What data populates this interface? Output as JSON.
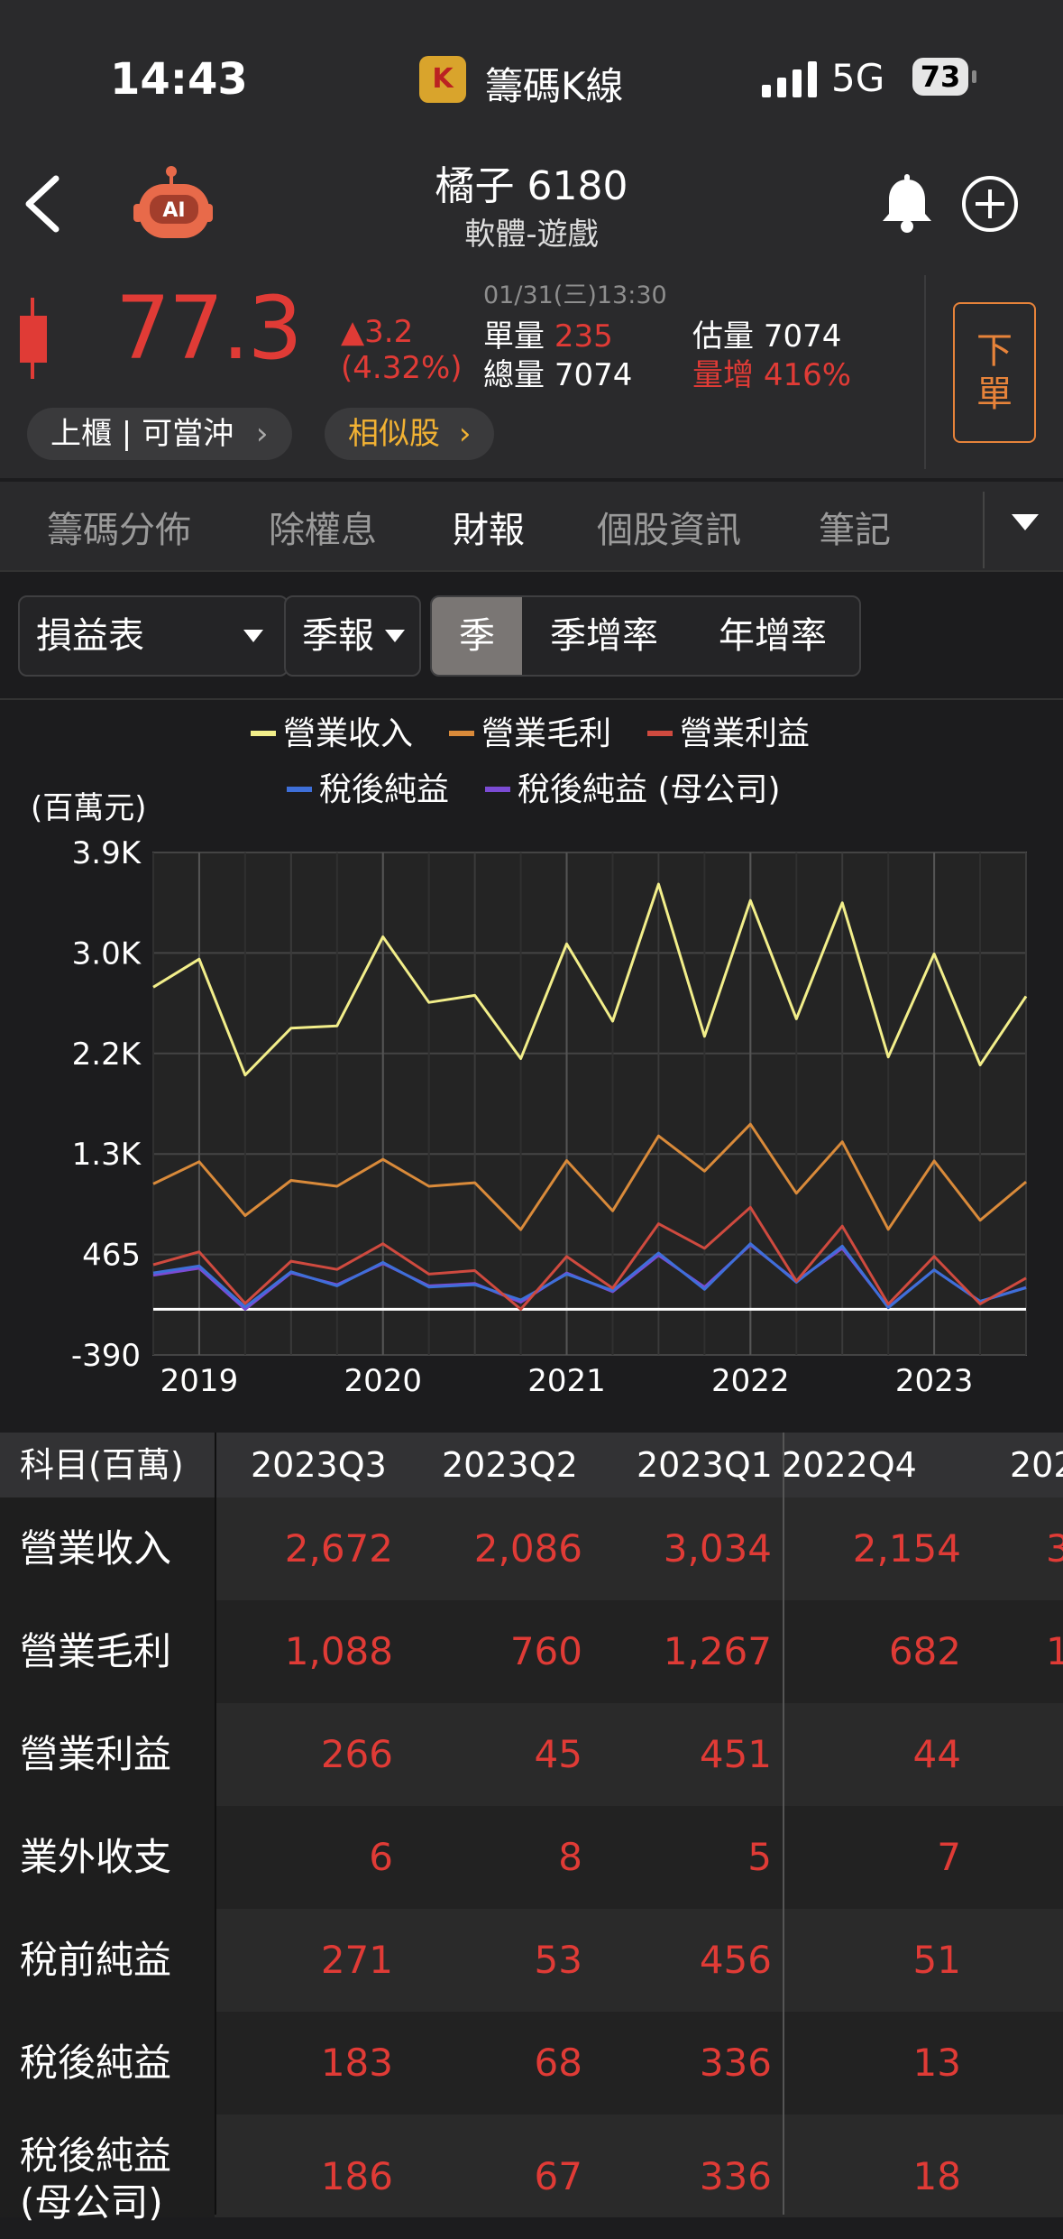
{
  "status_bar": {
    "time": "14:43",
    "app_name": "籌碼K線",
    "network": "5G",
    "battery": "73"
  },
  "header": {
    "title": "橘子 6180",
    "subtitle": "軟體-遊戲",
    "price": "77.3",
    "change": "▲3.2",
    "change_pct": "(4.32%)",
    "datetime": "01/31(三)13:30",
    "unit_volume_label": "單量",
    "unit_volume": "235",
    "total_volume_label": "總量",
    "total_volume": "7074",
    "est_volume_label": "估量",
    "est_volume": "7074",
    "volume_increase_label": "量增",
    "volume_increase": "416%",
    "order_button": [
      "下",
      "單"
    ],
    "market_pill": "上櫃 | 可當沖",
    "similar_pill": "相似股",
    "ai_label": "AI"
  },
  "tabs": [
    "籌碼分佈",
    "除權息",
    "財報",
    "個股資訊",
    "筆記"
  ],
  "active_tab": 2,
  "filters": {
    "statement": "損益表",
    "period": "季報",
    "segments": [
      "季",
      "季增率",
      "年增率"
    ],
    "active_segment": 0
  },
  "chart_data": {
    "type": "line",
    "ylabel": "(百萬元)",
    "y_ticks": [
      "3.9K",
      "3.0K",
      "2.2K",
      "1.3K",
      "465",
      "-390"
    ],
    "x_ticks": [
      "2019",
      "2020",
      "2021",
      "2022",
      "2023"
    ],
    "ylim": [
      -390,
      3900
    ],
    "legend_placement": "top",
    "grid": true,
    "x": [
      "2018Q4",
      "2019Q1",
      "2019Q2",
      "2019Q3",
      "2019Q4",
      "2020Q1",
      "2020Q2",
      "2020Q3",
      "2020Q4",
      "2021Q1",
      "2021Q2",
      "2021Q3",
      "2021Q4",
      "2022Q1",
      "2022Q2",
      "2022Q3",
      "2022Q4",
      "2023Q1",
      "2023Q2",
      "2023Q3"
    ],
    "series": [
      {
        "name": "營業收入",
        "color": "#f2ee8a",
        "values": [
          2750,
          2990,
          2000,
          2400,
          2420,
          3180,
          2620,
          2680,
          2140,
          3120,
          2460,
          3630,
          2330,
          3490,
          2480,
          3470,
          2154,
          3034,
          2086,
          2672
        ]
      },
      {
        "name": "營業毛利",
        "color": "#d98a3a",
        "values": [
          1070,
          1260,
          800,
          1100,
          1050,
          1280,
          1050,
          1080,
          680,
          1270,
          840,
          1480,
          1180,
          1580,
          990,
          1430,
          682,
          1267,
          760,
          1088
        ]
      },
      {
        "name": "營業利益",
        "color": "#cf4a3f",
        "values": [
          380,
          490,
          50,
          410,
          340,
          560,
          300,
          330,
          0,
          450,
          180,
          730,
          520,
          870,
          240,
          710,
          44,
          451,
          45,
          266
        ]
      },
      {
        "name": "稅後純益",
        "color": "#3e6fd9",
        "values": [
          310,
          370,
          20,
          320,
          200,
          400,
          190,
          210,
          80,
          300,
          160,
          480,
          170,
          560,
          230,
          540,
          13,
          336,
          68,
          183
        ]
      },
      {
        "name": "稅後純益 (母公司)",
        "color": "#7b4bd4",
        "values": [
          290,
          350,
          0,
          310,
          210,
          390,
          200,
          220,
          60,
          310,
          150,
          460,
          190,
          550,
          240,
          520,
          18,
          336,
          67,
          186
        ]
      }
    ]
  },
  "table": {
    "corner": "科目(百萬)",
    "columns": [
      "2023Q3",
      "2023Q2",
      "2023Q1",
      "2022Q4",
      "202"
    ],
    "rows": [
      {
        "label": "營業收入",
        "values": [
          "2,672",
          "2,086",
          "3,034",
          "2,154",
          "3"
        ]
      },
      {
        "label": "營業毛利",
        "values": [
          "1,088",
          "760",
          "1,267",
          "682",
          "1"
        ]
      },
      {
        "label": "營業利益",
        "values": [
          "266",
          "45",
          "451",
          "44",
          ""
        ]
      },
      {
        "label": "業外收支",
        "values": [
          "6",
          "8",
          "5",
          "7",
          ""
        ]
      },
      {
        "label": "稅前純益",
        "values": [
          "271",
          "53",
          "456",
          "51",
          ""
        ]
      },
      {
        "label": "稅後純益",
        "values": [
          "183",
          "68",
          "336",
          "13",
          ""
        ]
      },
      {
        "label": "稅後純益\n(母公司)",
        "values": [
          "186",
          "67",
          "336",
          "18",
          ""
        ]
      }
    ]
  }
}
